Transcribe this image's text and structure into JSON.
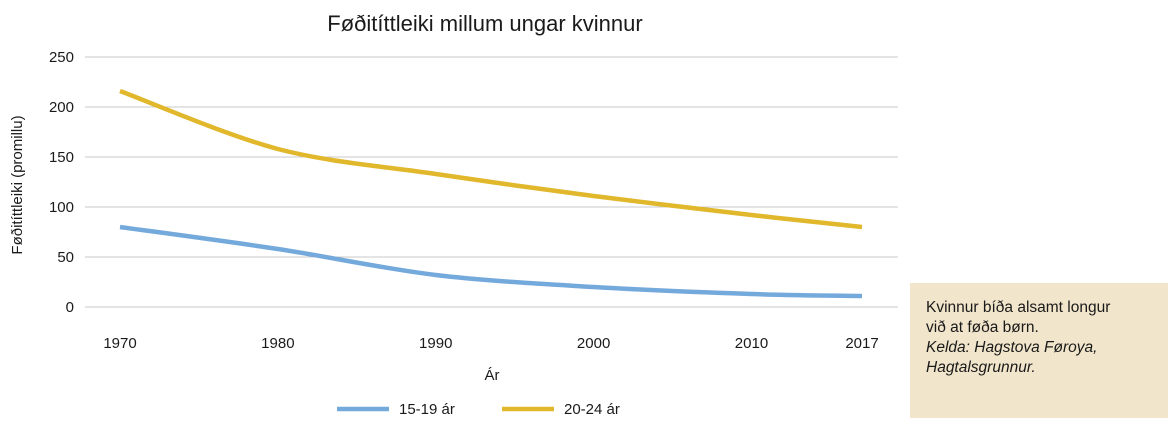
{
  "chart_data": {
    "type": "line",
    "title": "Føðitíttleiki millum ungar kvinnur",
    "xlabel": "Ár",
    "ylabel": "Føðitíttleiki (promillu)",
    "x": [
      1970,
      1980,
      1990,
      2000,
      2010,
      2017
    ],
    "x_ticks": [
      "1970",
      "1980",
      "1990",
      "2000",
      "2010",
      "2017"
    ],
    "y_ticks": [
      "0",
      "50",
      "100",
      "150",
      "200",
      "250"
    ],
    "ylim": [
      0,
      250
    ],
    "grid": true,
    "legend_position": "bottom",
    "series": [
      {
        "name": "15-19 ár",
        "color": "#74a9dc",
        "values": [
          80,
          58,
          32,
          20,
          13,
          11
        ]
      },
      {
        "name": "20-24 ár",
        "color": "#e1b72c",
        "values": [
          216,
          158,
          133,
          111,
          92,
          80
        ]
      }
    ]
  },
  "note": {
    "line1": "Kvinnur bíða alsamt longur",
    "line2": "við at føða børn.",
    "line3": "Kelda: Hagstova Føroya,",
    "line4": "Hagtalsgrunnur."
  }
}
